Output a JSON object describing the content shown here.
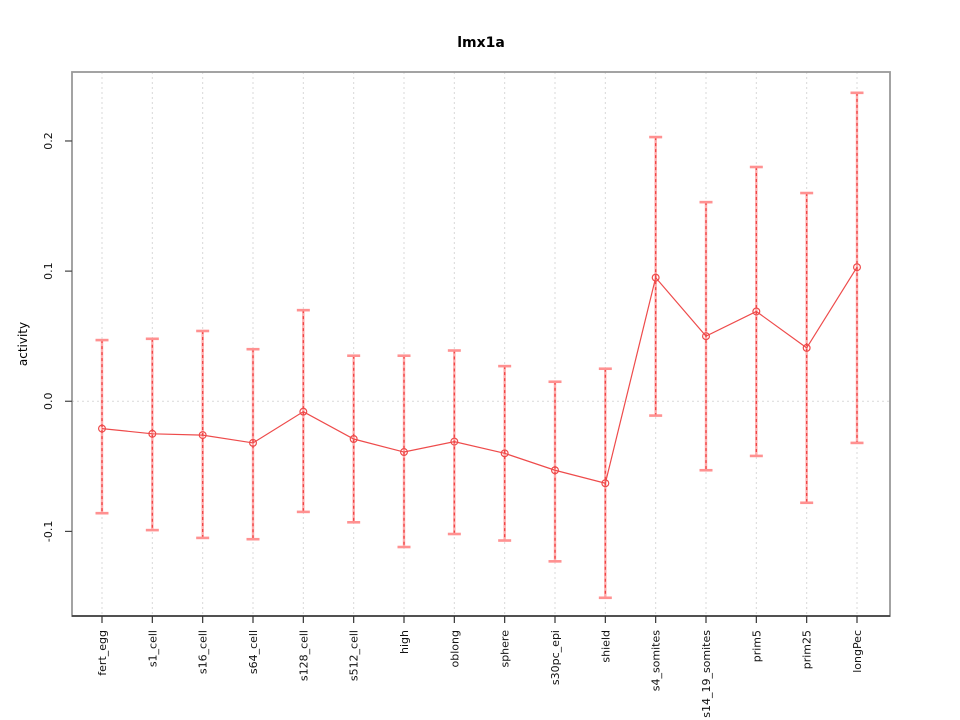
{
  "chart_data": {
    "type": "line",
    "title": "lmx1a",
    "xlabel": "",
    "ylabel": "activity",
    "categories": [
      "fert_egg",
      "s1_cell",
      "s16_cell",
      "s64_cell",
      "s128_cell",
      "s512_cell",
      "high",
      "oblong",
      "sphere",
      "s30pc_epi",
      "shield",
      "s4_somites",
      "s14_19_somites",
      "prim5",
      "prim25",
      "longPec"
    ],
    "series": [
      {
        "name": "activity",
        "values": [
          -0.021,
          -0.025,
          -0.026,
          -0.032,
          -0.008,
          -0.029,
          -0.039,
          -0.031,
          -0.04,
          -0.053,
          -0.063,
          0.095,
          0.05,
          0.069,
          0.041,
          0.103
        ],
        "lower": [
          -0.086,
          -0.099,
          -0.105,
          -0.106,
          -0.085,
          -0.093,
          -0.112,
          -0.102,
          -0.107,
          -0.123,
          -0.151,
          -0.011,
          -0.053,
          -0.042,
          -0.078,
          -0.032
        ],
        "upper": [
          0.047,
          0.048,
          0.054,
          0.04,
          0.07,
          0.035,
          0.035,
          0.039,
          0.027,
          0.015,
          0.025,
          0.203,
          0.153,
          0.18,
          0.16,
          0.237
        ]
      }
    ],
    "yticks": {
      "values": [
        -0.1,
        0.0,
        0.1,
        0.2
      ],
      "labels": [
        "-0.1",
        "0.0",
        "0.1",
        "0.2"
      ]
    },
    "ylim": [
      -0.165,
      0.253
    ],
    "legend": "none",
    "grid": "dotted vertical gridline per category; dotted horizontal line at y=0",
    "marker": "open-circle",
    "colors": {
      "line": "#ee4b4b",
      "point": "#ee4b4b",
      "error_bar_base": "#ffacac",
      "error_bar_dash": "#ef4545",
      "error_bar_cap": "#ff9191",
      "grid": "#d9d9d9",
      "box": "#999999",
      "axis": "#333333",
      "background": "#ffffff"
    }
  }
}
